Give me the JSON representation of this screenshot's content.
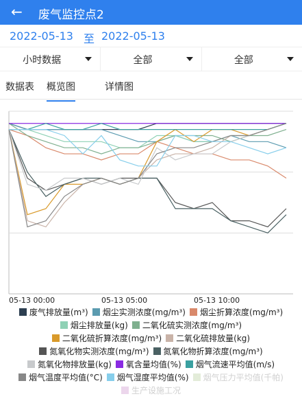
{
  "header": {
    "title": "废气监控点2"
  },
  "date_range": {
    "start": "2022-05-13",
    "separator": "至",
    "end": "2022-05-13"
  },
  "filters": [
    "小时数据",
    "全部",
    "全部"
  ],
  "tabs": [
    "数据表",
    "概览图",
    "详情图"
  ],
  "active_tab": 1,
  "chart_data": {
    "type": "line",
    "categories": [
      "05-13 00:00",
      null,
      null,
      null,
      null,
      "05-13 05:00",
      null,
      null,
      null,
      null,
      "05-13 10:00",
      null,
      null,
      null,
      null,
      null
    ],
    "ylim": [
      0,
      3
    ],
    "yticks": [
      1,
      2,
      3
    ],
    "grid": true,
    "series": [
      {
        "name": "废气排放量(m³)",
        "color": "#2c3e50",
        "values": [
          2.8,
          2.7,
          2.7,
          2.7,
          2.7,
          2.7,
          2.7,
          2.7,
          2.8,
          2.8,
          2.8,
          2.8,
          2.8,
          2.8,
          2.8,
          2.8
        ]
      },
      {
        "name": "烟尘实测浓度(mg/m³)",
        "color": "#5b9bb0",
        "values": [
          2.8,
          2.7,
          2.7,
          2.7,
          2.7,
          2.7,
          2.6,
          2.5,
          2.5,
          2.6,
          2.5,
          2.5,
          2.6,
          2.5,
          2.5,
          2.4
        ]
      },
      {
        "name": "烟尘折算浓度(mg/m³)",
        "color": "#d9896b",
        "values": [
          2.7,
          2.6,
          2.4,
          2.3,
          2.3,
          2.2,
          2.3,
          2.3,
          2.5,
          2.4,
          2.3,
          2.3,
          2.2,
          2.2,
          2.1,
          1.9
        ]
      },
      {
        "name": "烟尘排放量(kg)",
        "color": "#8fd1b5",
        "values": [
          2.7,
          2.7,
          2.6,
          2.5,
          2.5,
          2.5,
          2.4,
          2.4,
          2.6,
          2.6,
          2.5,
          2.5,
          2.6,
          2.6,
          2.7,
          2.8
        ]
      },
      {
        "name": "二氧化硫实测浓度(mg/m³)",
        "color": "#7fb08f",
        "values": [
          2.8,
          2.6,
          2.5,
          2.4,
          2.4,
          2.3,
          2.4,
          2.4,
          2.5,
          2.6,
          2.6,
          2.6,
          2.5,
          2.6,
          2.6,
          2.7
        ]
      },
      {
        "name": "二氧化硫折算浓度(mg/m³)",
        "color": "#d99a2b",
        "values": [
          2.7,
          1.3,
          1.4,
          1.8,
          1.8,
          1.9,
          1.8,
          1.9,
          2.5,
          2.7,
          2.5,
          2.7,
          2.7,
          2.6,
          2.7,
          2.8
        ]
      },
      {
        "name": "二氧化硫排放量(kg)",
        "color": "#c9b3a8",
        "values": [
          2.7,
          1.2,
          1.1,
          1.5,
          1.8,
          1.9,
          1.8,
          1.9,
          2.2,
          2.3,
          2.3,
          2.4,
          2.6,
          2.6,
          2.7,
          2.8
        ]
      },
      {
        "name": "氮氧化物实测浓度(mg/m³)",
        "color": "#555555",
        "values": [
          2.7,
          1.9,
          1.7,
          1.8,
          1.9,
          1.8,
          1.9,
          1.9,
          1.9,
          1.5,
          1.4,
          1.5,
          1.2,
          1.2,
          1.1,
          1.4
        ]
      },
      {
        "name": "氮氧化物折算浓度(mg/m³)",
        "color": "#4a6163",
        "values": [
          2.7,
          2.0,
          1.6,
          1.8,
          1.9,
          1.9,
          1.8,
          1.9,
          1.9,
          1.4,
          1.4,
          1.4,
          1.2,
          1.1,
          1.0,
          1.3
        ]
      },
      {
        "name": "氮氧化物排放量(kg)",
        "color": "#c8cacc",
        "values": [
          2.7,
          1.8,
          1.7,
          1.9,
          1.9,
          1.8,
          1.9,
          1.8,
          2.4,
          2.2,
          2.3,
          2.3,
          2.5,
          2.6,
          2.7,
          2.8
        ]
      },
      {
        "name": "氧含量均值(%)",
        "color": "#8a2be2",
        "values": [
          2.8,
          2.8,
          2.8,
          2.8,
          2.8,
          2.8,
          2.8,
          2.8,
          2.8,
          2.8,
          2.8,
          2.8,
          2.8,
          2.8,
          2.8,
          2.8
        ]
      },
      {
        "name": "烟气流速平均值(m/s)",
        "color": "#3aa0a0",
        "values": [
          2.7,
          2.7,
          2.8,
          2.7,
          2.7,
          2.8,
          2.7,
          2.7,
          2.7,
          2.7,
          2.7,
          2.7,
          2.7,
          2.7,
          2.7,
          2.8
        ]
      },
      {
        "name": "烟气温度平均值(°C)",
        "color": "#888888",
        "values": [
          2.7,
          1.1,
          1.2,
          1.6,
          1.8,
          1.9,
          1.8,
          1.9,
          2.3,
          2.4,
          2.4,
          2.5,
          2.6,
          2.6,
          2.7,
          2.8
        ]
      },
      {
        "name": "烟气湿度平均值(%)",
        "color": "#87ceeb",
        "values": [
          2.7,
          2.7,
          2.7,
          2.6,
          2.3,
          2.6,
          2.2,
          2.1,
          2.1,
          2.6,
          2.6,
          2.5,
          2.5,
          2.4,
          2.3,
          2.4
        ]
      },
      {
        "name": "烟气压力平均值(千帕)",
        "color": "#e3ecd9",
        "disabled": true,
        "values": [
          null,
          null,
          null,
          null,
          null,
          null,
          null,
          null,
          null,
          null,
          null,
          null,
          null,
          null,
          null,
          null
        ]
      },
      {
        "name": "生产设施工况",
        "color": "#ecd6ec",
        "disabled": true,
        "values": [
          null,
          null,
          null,
          null,
          null,
          null,
          null,
          null,
          null,
          null,
          null,
          null,
          null,
          null,
          null,
          null
        ]
      }
    ]
  }
}
